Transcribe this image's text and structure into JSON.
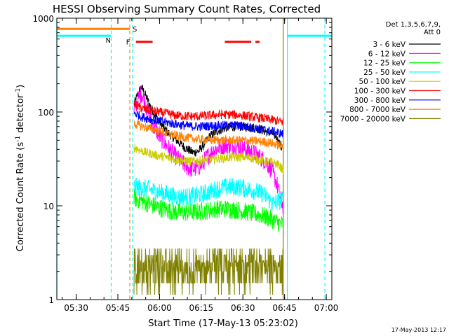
{
  "chart_data": {
    "type": "line",
    "title": "HESSI Observing Summary Count Rates, Corrected",
    "xlabel": "Start Time (17-May-13 05:23:02)",
    "ylabel_main": "Corrected Count Rate (s",
    "ylabel_sup1": "-1",
    "ylabel_mid": " detector",
    "ylabel_sup2": "-1",
    "ylabel_end": ")",
    "yscale": "log",
    "ylim": [
      1,
      1000
    ],
    "xlim_minutes": [
      323.03,
      422.0
    ],
    "x_ticks": [
      {
        "minute": 330,
        "label": "05:30"
      },
      {
        "minute": 345,
        "label": "05:45"
      },
      {
        "minute": 360,
        "label": "06:00"
      },
      {
        "minute": 375,
        "label": "06:15"
      },
      {
        "minute": 390,
        "label": "06:30"
      },
      {
        "minute": 405,
        "label": "06:45"
      },
      {
        "minute": 420,
        "label": "07:00"
      }
    ],
    "y_ticks": [
      {
        "value": 1,
        "label": "1"
      },
      {
        "value": 10,
        "label": "10"
      },
      {
        "value": 100,
        "label": "100"
      },
      {
        "value": 1000,
        "label": "1000"
      }
    ],
    "legend_header": [
      "Det 1,3,5,6,7,9,",
      "Att 0"
    ],
    "legend_placement": "right",
    "series": [
      {
        "name": "3 - 6 keV",
        "color": "#000000",
        "points": [
          [
            350.8,
            120
          ],
          [
            352,
            150
          ],
          [
            353.5,
            185
          ],
          [
            355,
            150
          ],
          [
            357,
            110
          ],
          [
            360,
            78
          ],
          [
            363,
            60
          ],
          [
            366,
            50
          ],
          [
            369,
            42
          ],
          [
            372,
            37
          ],
          [
            374,
            38
          ],
          [
            376,
            45
          ],
          [
            378,
            55
          ],
          [
            381,
            63
          ],
          [
            384,
            68
          ],
          [
            387,
            70
          ],
          [
            390,
            70
          ],
          [
            393,
            68
          ],
          [
            396,
            66
          ],
          [
            398,
            62
          ],
          [
            400,
            60
          ],
          [
            402,
            55
          ],
          [
            404,
            40
          ]
        ]
      },
      {
        "name": "6 - 12 keV",
        "color": "#ff00ff",
        "points": [
          [
            350.8,
            100
          ],
          [
            352,
            130
          ],
          [
            353.5,
            160
          ],
          [
            355,
            120
          ],
          [
            357,
            80
          ],
          [
            360,
            55
          ],
          [
            363,
            42
          ],
          [
            366,
            33
          ],
          [
            369,
            27
          ],
          [
            371,
            25
          ],
          [
            373,
            25
          ],
          [
            375,
            27
          ],
          [
            377,
            33
          ],
          [
            380,
            40
          ],
          [
            383,
            44
          ],
          [
            386,
            44
          ],
          [
            389,
            42
          ],
          [
            392,
            39
          ],
          [
            395,
            35
          ],
          [
            398,
            30
          ],
          [
            400,
            25
          ],
          [
            402,
            18
          ],
          [
            403.5,
            12
          ],
          [
            404.5,
            10
          ]
        ]
      },
      {
        "name": "12 - 25 keV",
        "color": "#00ff00",
        "points": [
          [
            350.8,
            12
          ],
          [
            353,
            11.5
          ],
          [
            356,
            10.5
          ],
          [
            360,
            9.5
          ],
          [
            364,
            8.8
          ],
          [
            368,
            8.5
          ],
          [
            372,
            8.5
          ],
          [
            376,
            8.8
          ],
          [
            380,
            9.2
          ],
          [
            384,
            9.3
          ],
          [
            388,
            9
          ],
          [
            392,
            8.5
          ],
          [
            396,
            8
          ],
          [
            399,
            7.5
          ],
          [
            401,
            7
          ],
          [
            403,
            6.5
          ],
          [
            404.5,
            6.3
          ]
        ]
      },
      {
        "name": "25 - 50 keV",
        "color": "#00ffff",
        "points": [
          [
            350.8,
            16
          ],
          [
            354,
            15.5
          ],
          [
            358,
            14.5
          ],
          [
            362,
            13.5
          ],
          [
            366,
            12.5
          ],
          [
            370,
            12.5
          ],
          [
            374,
            13
          ],
          [
            378,
            14
          ],
          [
            382,
            15.5
          ],
          [
            386,
            16
          ],
          [
            390,
            15.5
          ],
          [
            394,
            14.5
          ],
          [
            397,
            13.5
          ],
          [
            399,
            12
          ],
          [
            400.5,
            10.5
          ],
          [
            402,
            11
          ],
          [
            404.5,
            11.5
          ]
        ]
      },
      {
        "name": "50 - 100 keV",
        "color": "#cccc00",
        "points": [
          [
            350.8,
            42
          ],
          [
            354,
            38
          ],
          [
            358,
            35
          ],
          [
            362,
            33
          ],
          [
            366,
            31
          ],
          [
            370,
            30
          ],
          [
            374,
            30
          ],
          [
            378,
            31
          ],
          [
            382,
            32
          ],
          [
            386,
            33
          ],
          [
            390,
            33
          ],
          [
            394,
            32
          ],
          [
            398,
            30
          ],
          [
            401,
            29
          ],
          [
            403,
            27
          ],
          [
            404.5,
            24
          ]
        ]
      },
      {
        "name": "100 - 300 keV",
        "color": "#ff0000",
        "points": [
          [
            350.8,
            122
          ],
          [
            354,
            108
          ],
          [
            358,
            102
          ],
          [
            362,
            97
          ],
          [
            366,
            92
          ],
          [
            370,
            90
          ],
          [
            374,
            90
          ],
          [
            378,
            92
          ],
          [
            382,
            94
          ],
          [
            386,
            94
          ],
          [
            390,
            92
          ],
          [
            394,
            88
          ],
          [
            398,
            85
          ],
          [
            401,
            82
          ],
          [
            404.5,
            78
          ]
        ]
      },
      {
        "name": "300 - 800 keV",
        "color": "#0000ff",
        "points": [
          [
            350.8,
            98
          ],
          [
            354,
            88
          ],
          [
            358,
            82
          ],
          [
            362,
            78
          ],
          [
            366,
            74
          ],
          [
            370,
            71
          ],
          [
            374,
            70
          ],
          [
            378,
            71
          ],
          [
            382,
            72
          ],
          [
            386,
            72
          ],
          [
            390,
            71
          ],
          [
            394,
            68
          ],
          [
            398,
            64
          ],
          [
            401,
            62
          ],
          [
            404.5,
            58
          ]
        ]
      },
      {
        "name": "800 - 7000 keV",
        "color": "#ff8000",
        "points": [
          [
            350.8,
            75
          ],
          [
            354,
            70
          ],
          [
            358,
            65
          ],
          [
            362,
            60
          ],
          [
            366,
            56
          ],
          [
            370,
            53
          ],
          [
            374,
            51
          ],
          [
            378,
            50
          ],
          [
            382,
            50
          ],
          [
            386,
            50
          ],
          [
            390,
            50
          ],
          [
            394,
            49
          ],
          [
            398,
            48
          ],
          [
            401,
            46
          ],
          [
            404.5,
            43
          ]
        ]
      },
      {
        "name": "7000 - 20000 keV",
        "color": "#808000",
        "points": [
          [
            350.8,
            2.5
          ],
          [
            352,
            2.2
          ],
          [
            354,
            2
          ],
          [
            356,
            2.5
          ],
          [
            358,
            2
          ],
          [
            360,
            2.5
          ],
          [
            362,
            2
          ],
          [
            364,
            2.5
          ],
          [
            366,
            2
          ],
          [
            368,
            2.5
          ],
          [
            370,
            2
          ],
          [
            372,
            2.5
          ],
          [
            374,
            2
          ],
          [
            376,
            2.5
          ],
          [
            378,
            2
          ],
          [
            380,
            2.5
          ],
          [
            382,
            2.5
          ],
          [
            384,
            2.5
          ],
          [
            386,
            2.5
          ],
          [
            388,
            2.5
          ],
          [
            390,
            2.5
          ],
          [
            392,
            2.2
          ],
          [
            394,
            2
          ],
          [
            396,
            2
          ],
          [
            398,
            2
          ],
          [
            400,
            1.7
          ],
          [
            402,
            1.6
          ],
          [
            404.5,
            1.5
          ]
        ]
      }
    ],
    "state_bars": [
      {
        "label": "N",
        "color": "#00ffff",
        "start": 323.03,
        "end": 342.6,
        "level": 650
      },
      {
        "label": "S",
        "color": "#ff8000",
        "start": 323.03,
        "end": 349.3,
        "level": 770
      },
      {
        "label": "F",
        "color": "#ff0000",
        "segments": [
          [
            351.5,
            357.5
          ],
          [
            383.5,
            393.0
          ],
          [
            394.5,
            396.0
          ]
        ],
        "level": 560
      },
      {
        "label": "",
        "color": "#00ffff",
        "start": 406.0,
        "end": 422.0,
        "level": 650
      }
    ],
    "vlines": [
      {
        "minute": 350.3,
        "color": "#00ffff",
        "dashed": true
      },
      {
        "minute": 349.3,
        "color": "#ff8000",
        "dashed": true
      },
      {
        "minute": 342.6,
        "color": "#00ffff",
        "dashed": true
      },
      {
        "minute": 406.0,
        "color": "#00ffff",
        "dashed": false
      },
      {
        "minute": 419.5,
        "color": "#00ffff",
        "dashed": true
      },
      {
        "minute": 323.03,
        "color": "#00ffff",
        "dashed": false
      },
      {
        "minute": 404.5,
        "color": "#808000",
        "dashed": false
      }
    ]
  },
  "footer_timestamp": "17-May-2013 12:17"
}
